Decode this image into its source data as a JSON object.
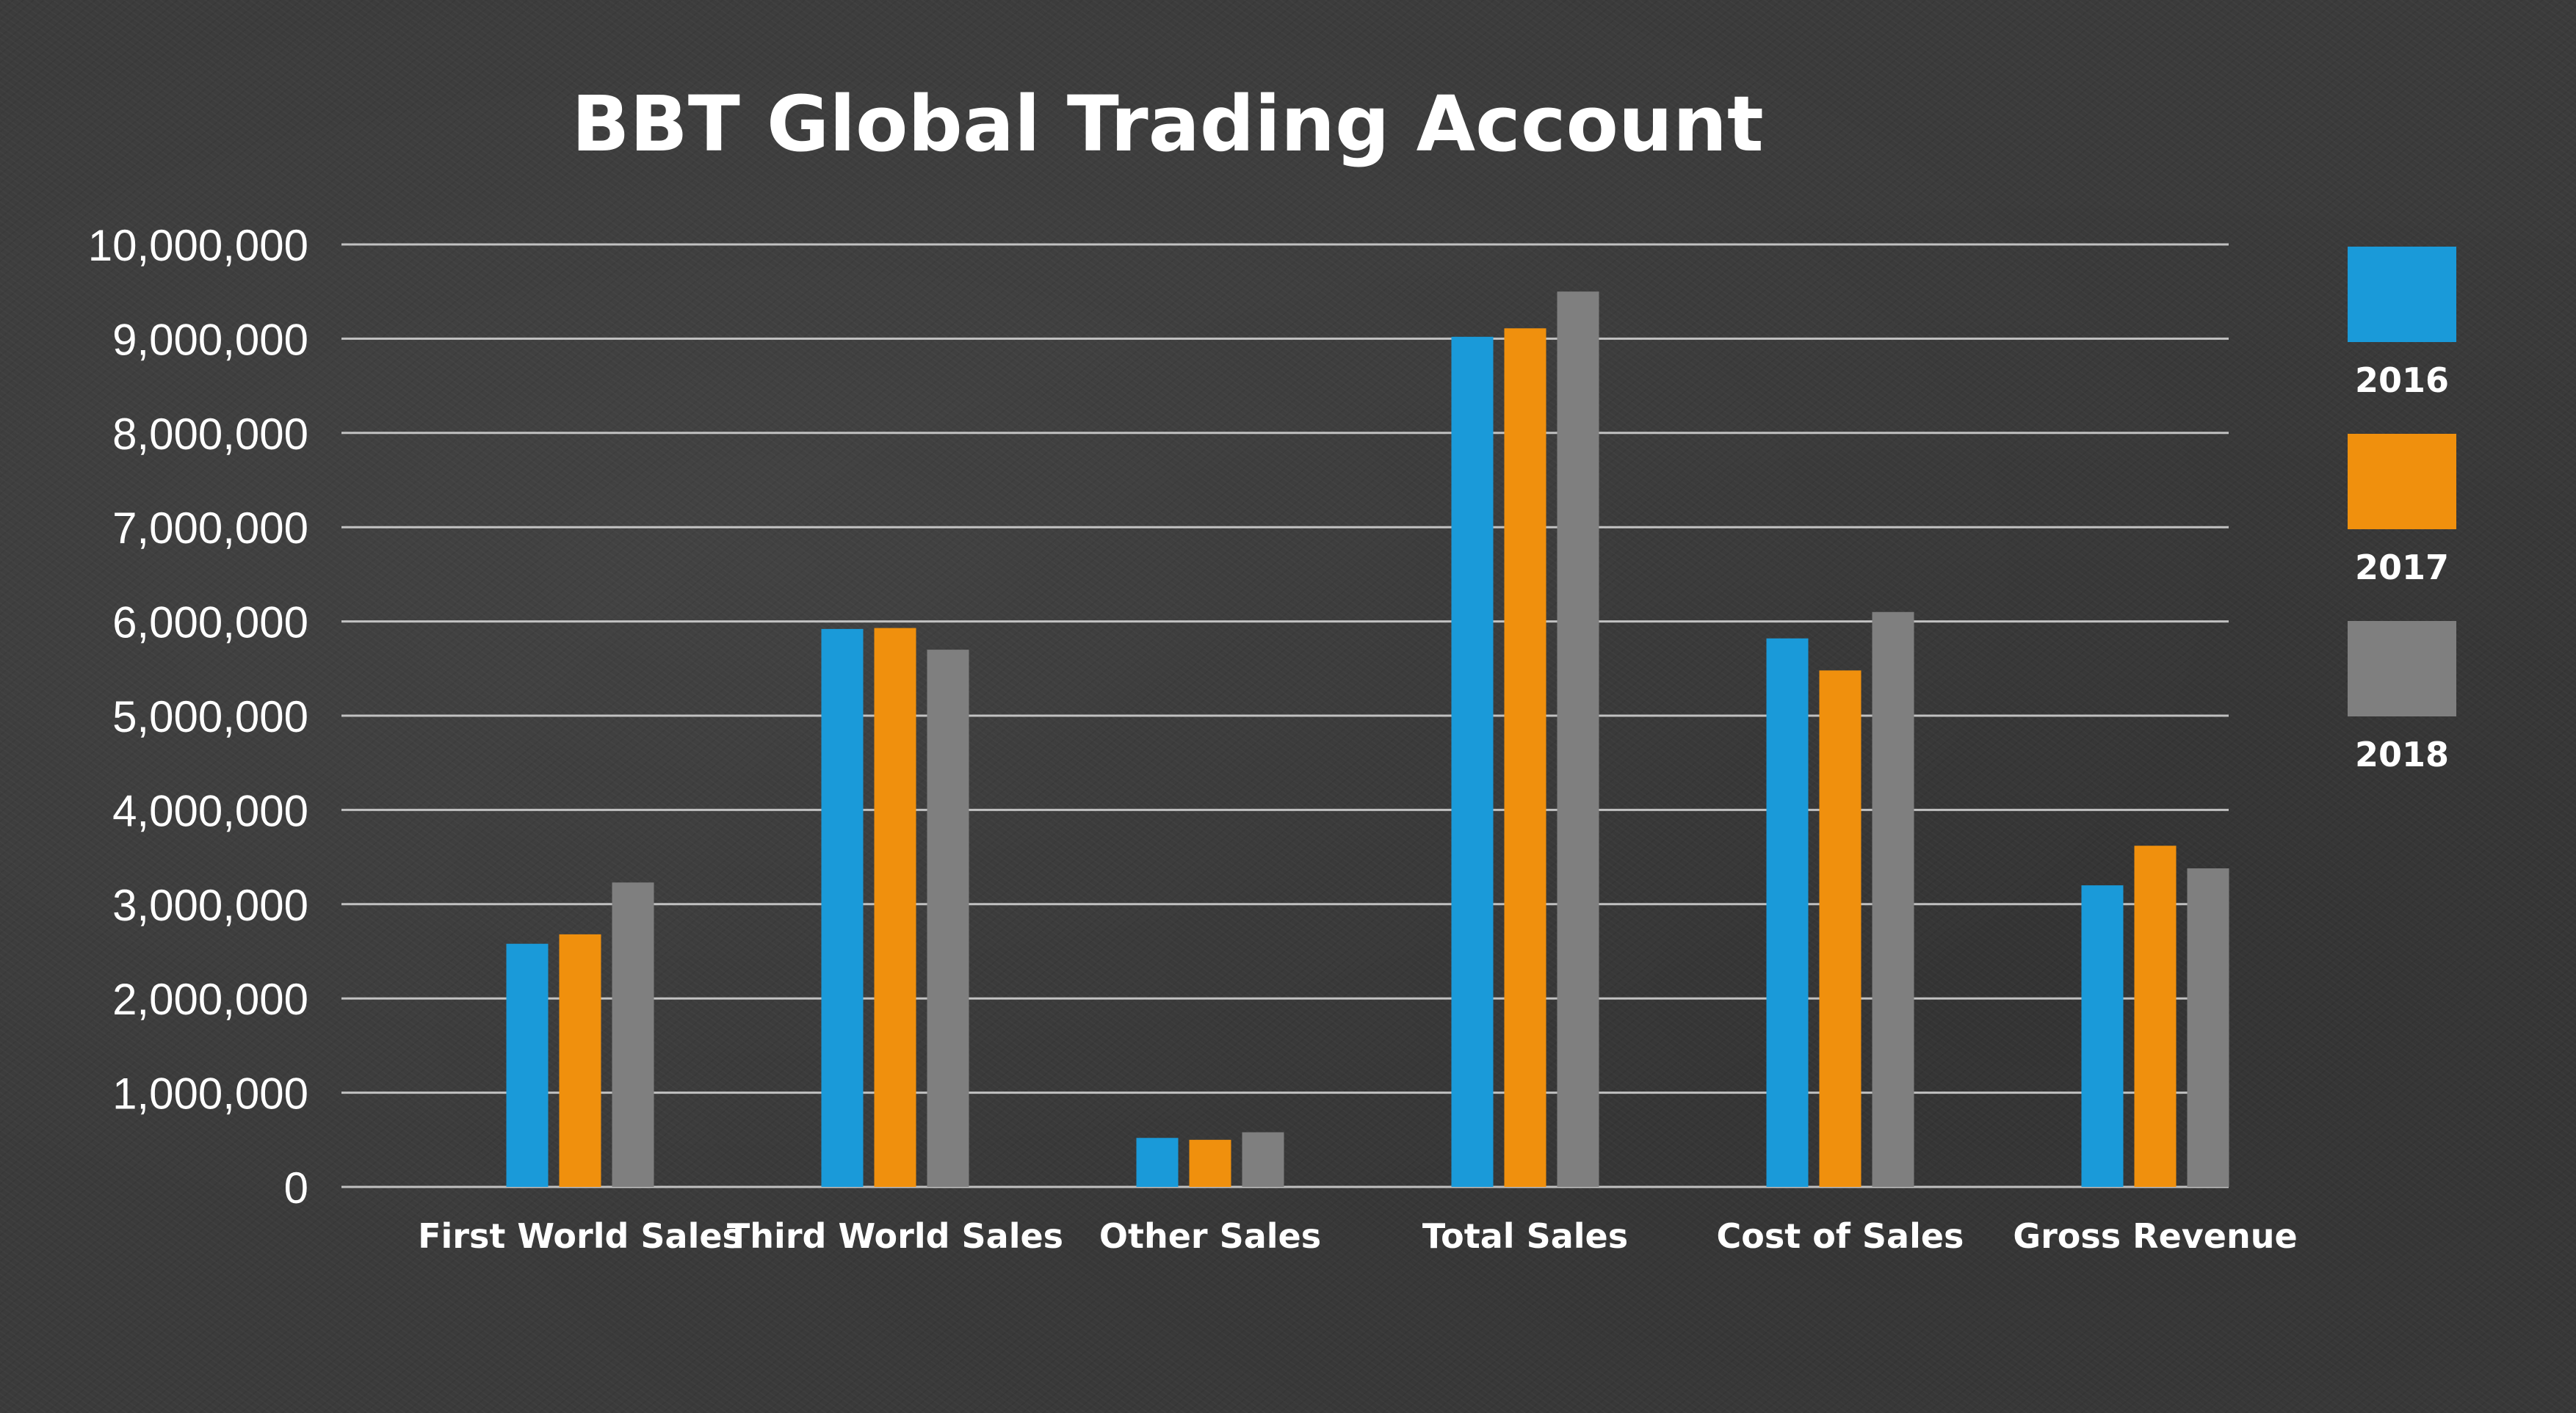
{
  "chart_data": {
    "type": "bar",
    "title": "BBT Global Trading Account",
    "xlabel": "",
    "ylabel": "",
    "categories": [
      "First World Sales",
      "Third World Sales",
      "Other Sales",
      "Total Sales",
      "Cost of Sales",
      "Gross Revenue"
    ],
    "series": [
      {
        "name": "2016",
        "color": "#1a9ad9",
        "values": [
          2580000,
          5920000,
          520000,
          9020000,
          5820000,
          3200000
        ]
      },
      {
        "name": "2017",
        "color": "#f0900d",
        "values": [
          2680000,
          5930000,
          500000,
          9110000,
          5480000,
          3620000
        ]
      },
      {
        "name": "2018",
        "color": "#7f7f7f",
        "values": [
          3230000,
          5700000,
          580000,
          9500000,
          6100000,
          3380000
        ]
      }
    ],
    "ylim": [
      0,
      10000000
    ],
    "yticks": [
      "0",
      "1,000,000",
      "2,000,000",
      "3,000,000",
      "4,000,000",
      "5,000,000",
      "6,000,000",
      "7,000,000",
      "8,000,000",
      "9,000,000",
      "10,000,000"
    ],
    "grid": true,
    "legend_position": "right"
  }
}
